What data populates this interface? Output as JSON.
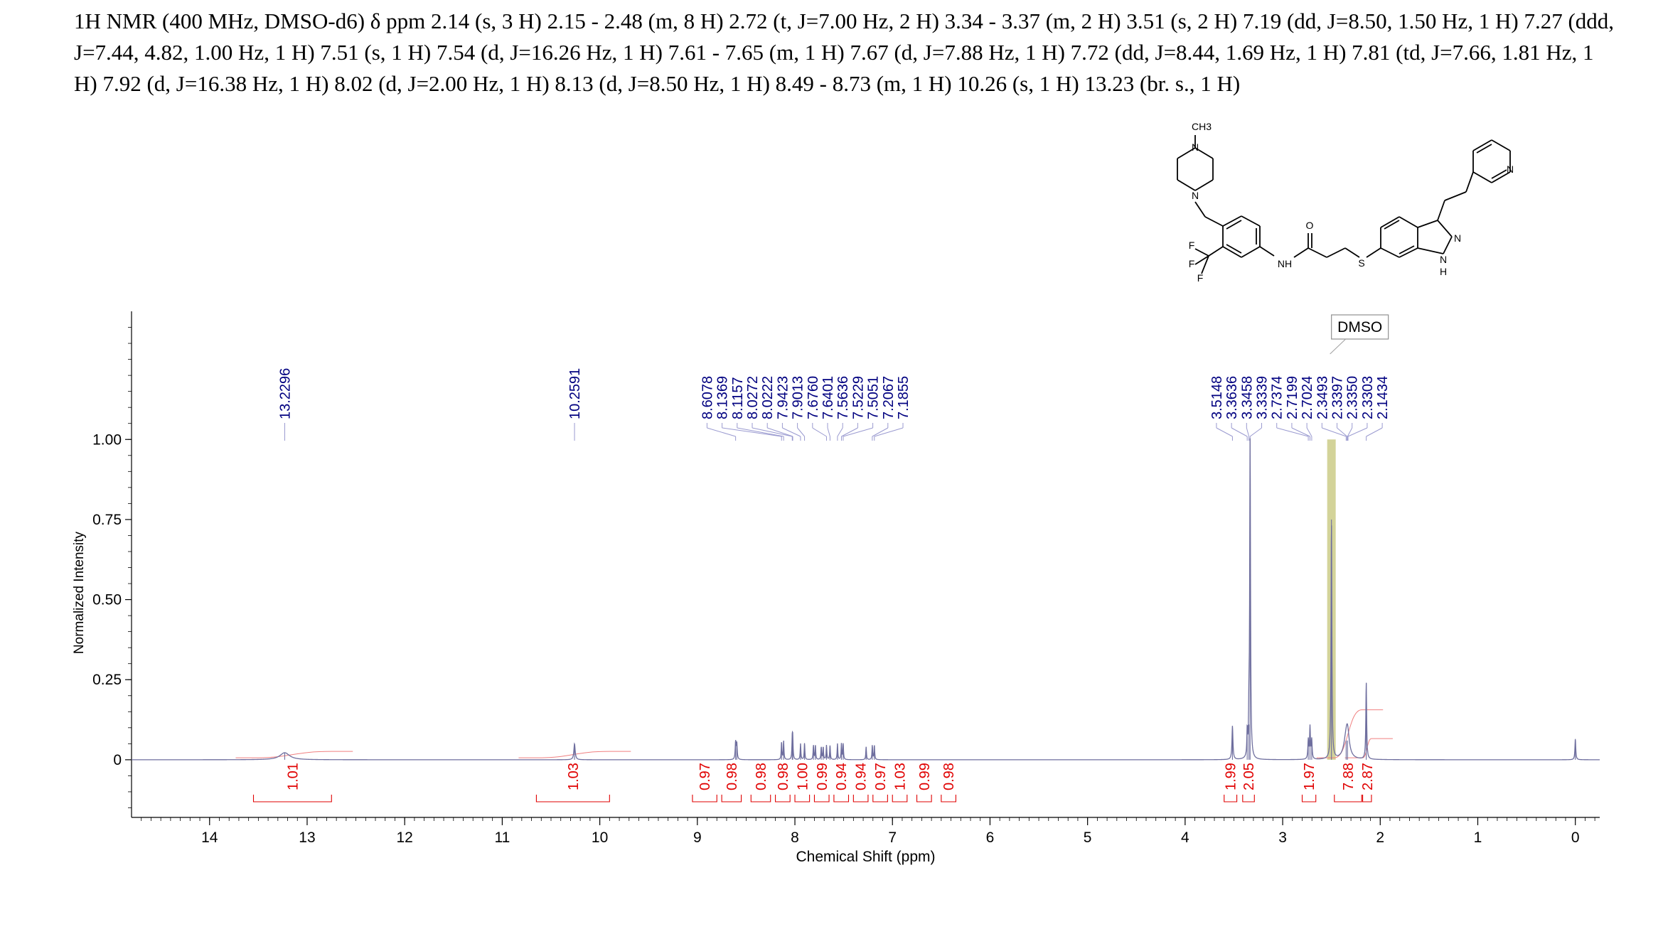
{
  "header_text": "1H NMR (400 MHz, DMSO-d6) δ ppm 2.14 (s, 3 H) 2.15 - 2.48 (m, 8 H) 2.72 (t, J=7.00 Hz, 2 H) 3.34 - 3.37 (m, 2 H) 3.51 (s, 2 H) 7.19 (dd, J=8.50, 1.50 Hz, 1 H) 7.27 (ddd, J=7.44, 4.82, 1.00 Hz, 1 H) 7.51 (s, 1 H) 7.54 (d, J=16.26 Hz, 1 H) 7.61 - 7.65 (m, 1 H) 7.67 (d, J=7.88 Hz, 1 H) 7.72 (dd, J=8.44, 1.69 Hz, 1 H) 7.81 (td, J=7.66, 1.81 Hz, 1 H) 7.92 (d, J=16.38 Hz, 1 H) 8.02 (d, J=2.00 Hz, 1 H) 8.13 (d, J=8.50 Hz, 1 H) 8.49 - 8.73 (m, 1 H) 10.26 (s, 1 H) 13.23 (br. s., 1 H)",
  "colors": {
    "spectrum": "#6e6e9e",
    "peak_label": "#000080",
    "integral": "#e00000",
    "solvent_band": "#c8c880",
    "axis": "#000000"
  },
  "chart_data": {
    "type": "line",
    "xlabel": "Chemical Shift (ppm)",
    "ylabel": "Normalized Intensity",
    "xlim": [
      14.8,
      -0.25
    ],
    "ylim": [
      -0.18,
      1.4
    ],
    "x_ticks": [
      "14",
      "13",
      "12",
      "11",
      "10",
      "9",
      "8",
      "7",
      "6",
      "5",
      "4",
      "3",
      "2",
      "1",
      "0"
    ],
    "y_ticks": [
      "0",
      "0.25",
      "0.50",
      "0.75",
      "1.00"
    ],
    "solvent_label": "DMSO",
    "solvent_shift": 2.5,
    "peak_labels": [
      {
        "ppm": 13.2296,
        "text": "13.2296"
      },
      {
        "ppm": 10.2591,
        "text": "10.2591"
      },
      {
        "ppm": 8.6078,
        "text": "8.6078"
      },
      {
        "ppm": 8.1369,
        "text": "8.1369"
      },
      {
        "ppm": 8.1157,
        "text": "8.1157"
      },
      {
        "ppm": 8.0272,
        "text": "8.0272"
      },
      {
        "ppm": 8.0222,
        "text": "8.0222"
      },
      {
        "ppm": 7.9423,
        "text": "7.9423"
      },
      {
        "ppm": 7.9013,
        "text": "7.9013"
      },
      {
        "ppm": 7.676,
        "text": "7.6760"
      },
      {
        "ppm": 7.6401,
        "text": "7.6401"
      },
      {
        "ppm": 7.5636,
        "text": "7.5636"
      },
      {
        "ppm": 7.5229,
        "text": "7.5229"
      },
      {
        "ppm": 7.5051,
        "text": "7.5051"
      },
      {
        "ppm": 7.2067,
        "text": "7.2067"
      },
      {
        "ppm": 7.1855,
        "text": "7.1855"
      },
      {
        "ppm": 3.5148,
        "text": "3.5148"
      },
      {
        "ppm": 3.3636,
        "text": "3.3636"
      },
      {
        "ppm": 3.3458,
        "text": "3.3458"
      },
      {
        "ppm": 3.3339,
        "text": "3.3339"
      },
      {
        "ppm": 2.7374,
        "text": "2.7374"
      },
      {
        "ppm": 2.7199,
        "text": "2.7199"
      },
      {
        "ppm": 2.7024,
        "text": "2.7024"
      },
      {
        "ppm": 2.3493,
        "text": "2.3493"
      },
      {
        "ppm": 2.3397,
        "text": "2.3397"
      },
      {
        "ppm": 2.335,
        "text": "2.3350"
      },
      {
        "ppm": 2.3303,
        "text": "2.3303"
      },
      {
        "ppm": 2.1434,
        "text": "2.1434"
      }
    ],
    "integrals": [
      {
        "from": 13.55,
        "to": 12.75,
        "value": "1.01"
      },
      {
        "from": 10.65,
        "to": 9.9,
        "value": "1.03"
      },
      {
        "from": 9.05,
        "to": 8.8,
        "value": "0.97"
      },
      {
        "from": 8.75,
        "to": 8.55,
        "value": "0.98"
      },
      {
        "from": 8.45,
        "to": 8.25,
        "value": "0.98"
      },
      {
        "from": 8.2,
        "to": 8.05,
        "value": "0.98"
      },
      {
        "from": 8.0,
        "to": 7.85,
        "value": "1.00"
      },
      {
        "from": 7.8,
        "to": 7.65,
        "value": "0.99"
      },
      {
        "from": 7.6,
        "to": 7.45,
        "value": "0.94"
      },
      {
        "from": 7.4,
        "to": 7.25,
        "value": "0.94"
      },
      {
        "from": 7.2,
        "to": 7.05,
        "value": "0.97"
      },
      {
        "from": 7.0,
        "to": 6.85,
        "value": "1.03"
      },
      {
        "from": 6.75,
        "to": 6.6,
        "value": "0.99"
      },
      {
        "from": 6.5,
        "to": 6.35,
        "value": "0.98"
      },
      {
        "from": 3.6,
        "to": 3.47,
        "value": "1.99"
      },
      {
        "from": 3.41,
        "to": 3.29,
        "value": "2.05"
      },
      {
        "from": 2.8,
        "to": 2.66,
        "value": "1.97"
      },
      {
        "from": 2.47,
        "to": 2.19,
        "value": "7.88"
      },
      {
        "from": 2.18,
        "to": 2.09,
        "value": "2.87"
      }
    ],
    "peaks": [
      {
        "ppm": 13.2296,
        "height": 0.022,
        "width": 0.06
      },
      {
        "ppm": 10.2591,
        "height": 0.05,
        "width": 0.008
      },
      {
        "ppm": 8.6078,
        "height": 0.055,
        "width": 0.005
      },
      {
        "ppm": 8.5958,
        "height": 0.05,
        "width": 0.005
      },
      {
        "ppm": 8.1369,
        "height": 0.055,
        "width": 0.004
      },
      {
        "ppm": 8.1157,
        "height": 0.058,
        "width": 0.004
      },
      {
        "ppm": 8.0272,
        "height": 0.06,
        "width": 0.004
      },
      {
        "ppm": 8.0222,
        "height": 0.06,
        "width": 0.004
      },
      {
        "ppm": 7.9423,
        "height": 0.05,
        "width": 0.004
      },
      {
        "ppm": 7.9013,
        "height": 0.052,
        "width": 0.004
      },
      {
        "ppm": 7.81,
        "height": 0.045,
        "width": 0.004
      },
      {
        "ppm": 7.79,
        "height": 0.045,
        "width": 0.004
      },
      {
        "ppm": 7.73,
        "height": 0.04,
        "width": 0.004
      },
      {
        "ppm": 7.71,
        "height": 0.04,
        "width": 0.004
      },
      {
        "ppm": 7.676,
        "height": 0.045,
        "width": 0.004
      },
      {
        "ppm": 7.6401,
        "height": 0.045,
        "width": 0.004
      },
      {
        "ppm": 7.5636,
        "height": 0.05,
        "width": 0.004
      },
      {
        "ppm": 7.5229,
        "height": 0.05,
        "width": 0.004
      },
      {
        "ppm": 7.5051,
        "height": 0.05,
        "width": 0.004
      },
      {
        "ppm": 7.27,
        "height": 0.04,
        "width": 0.004
      },
      {
        "ppm": 7.2067,
        "height": 0.045,
        "width": 0.004
      },
      {
        "ppm": 7.1855,
        "height": 0.045,
        "width": 0.004
      },
      {
        "ppm": 3.5148,
        "height": 0.105,
        "width": 0.006
      },
      {
        "ppm": 3.3636,
        "height": 0.08,
        "width": 0.004
      },
      {
        "ppm": 3.3458,
        "height": 0.11,
        "width": 0.004
      },
      {
        "ppm": 3.3339,
        "height": 1.0,
        "width": 0.005
      },
      {
        "ppm": 2.7374,
        "height": 0.06,
        "width": 0.005
      },
      {
        "ppm": 2.7199,
        "height": 0.1,
        "width": 0.005
      },
      {
        "ppm": 2.7024,
        "height": 0.06,
        "width": 0.005
      },
      {
        "ppm": 2.5,
        "height": 0.75,
        "width": 0.005
      },
      {
        "ppm": 2.3493,
        "height": 0.06,
        "width": 0.03
      },
      {
        "ppm": 2.335,
        "height": 0.06,
        "width": 0.02
      },
      {
        "ppm": 2.1434,
        "height": 0.24,
        "width": 0.005
      },
      {
        "ppm": 0.0,
        "height": 0.065,
        "width": 0.005
      }
    ]
  }
}
